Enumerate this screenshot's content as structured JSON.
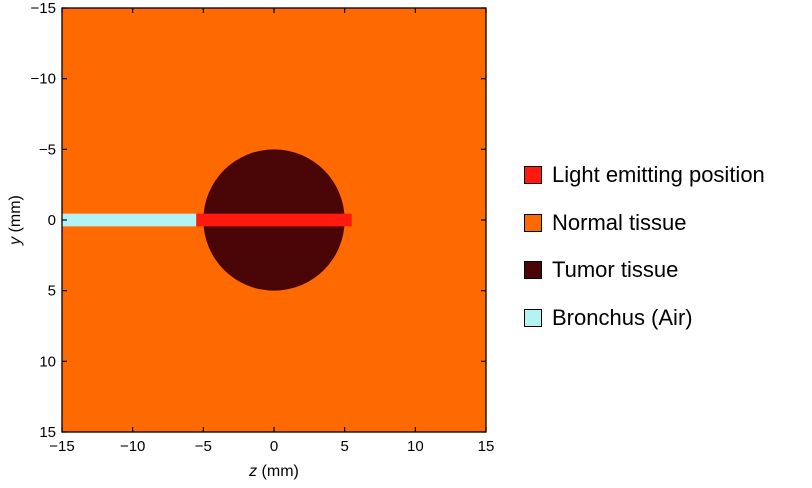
{
  "chart_data": {
    "type": "heatmap",
    "xlabel_var": "z",
    "xlabel_unit": " (mm)",
    "ylabel_var": "y",
    "ylabel_unit": " (mm)",
    "xlim": [
      -15,
      15
    ],
    "ylim": [
      -15,
      15
    ],
    "y_inverted": true,
    "x_ticks": [
      -15,
      -10,
      -5,
      0,
      5,
      10,
      15
    ],
    "y_ticks": [
      -15,
      -10,
      -5,
      0,
      5,
      10,
      15
    ],
    "x_tick_labels": [
      "−15",
      "−10",
      "−5",
      "0",
      "5",
      "10",
      "15"
    ],
    "y_tick_labels": [
      "−15",
      "−10",
      "−5",
      "0",
      "5",
      "10",
      "15"
    ],
    "grid": false,
    "legend_position": "right",
    "regions": [
      {
        "name": "Normal tissue",
        "shape": "background",
        "color": "#ff6a00"
      },
      {
        "name": "Tumor tissue",
        "shape": "circle",
        "center": [
          0,
          0
        ],
        "radius": 5,
        "color": "#4a0506"
      },
      {
        "name": "Bronchus (Air)",
        "shape": "rect",
        "z_range": [
          -15,
          -5.5
        ],
        "y_range": [
          -0.45,
          0.45
        ],
        "color": "#b3f3f4"
      },
      {
        "name": "Light emitting position",
        "shape": "rect",
        "z_range": [
          -5.5,
          5.5
        ],
        "y_range": [
          -0.45,
          0.45
        ],
        "color": "#ff1a0d"
      }
    ]
  },
  "legend": {
    "items": [
      {
        "label": "Light emitting position",
        "color": "#ff1a0d"
      },
      {
        "label": "Normal tissue",
        "color": "#ff6a00"
      },
      {
        "label": "Tumor tissue",
        "color": "#4a0506"
      },
      {
        "label": "Bronchus (Air)",
        "color": "#b3f3f4"
      }
    ]
  }
}
